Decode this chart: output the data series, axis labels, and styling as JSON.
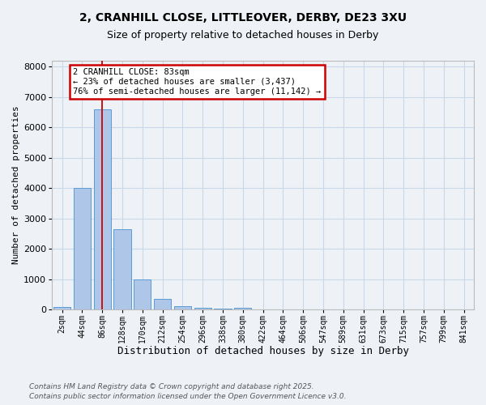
{
  "title_line1": "2, CRANHILL CLOSE, LITTLEOVER, DERBY, DE23 3XU",
  "title_line2": "Size of property relative to detached houses in Derby",
  "xlabel": "Distribution of detached houses by size in Derby",
  "ylabel": "Number of detached properties",
  "categories": [
    "2sqm",
    "44sqm",
    "86sqm",
    "128sqm",
    "170sqm",
    "212sqm",
    "254sqm",
    "296sqm",
    "338sqm",
    "380sqm",
    "422sqm",
    "464sqm",
    "506sqm",
    "547sqm",
    "589sqm",
    "631sqm",
    "673sqm",
    "715sqm",
    "757sqm",
    "799sqm",
    "841sqm"
  ],
  "values": [
    70,
    4000,
    6600,
    2650,
    990,
    340,
    120,
    65,
    40,
    55,
    0,
    0,
    0,
    0,
    0,
    0,
    0,
    0,
    0,
    0,
    0
  ],
  "bar_color": "#aec6e8",
  "bar_edge_color": "#5b9bd5",
  "grid_color": "#c8d8e8",
  "background_color": "#eef2f7",
  "vline_color": "#cc0000",
  "vline_x": 2,
  "annotation_text": "2 CRANHILL CLOSE: 83sqm\n← 23% of detached houses are smaller (3,437)\n76% of semi-detached houses are larger (11,142) →",
  "annotation_box_color": "#ffffff",
  "annotation_box_edge": "#cc0000",
  "ylim": [
    0,
    8200
  ],
  "yticks": [
    0,
    1000,
    2000,
    3000,
    4000,
    5000,
    6000,
    7000,
    8000
  ],
  "footnote1": "Contains HM Land Registry data © Crown copyright and database right 2025.",
  "footnote2": "Contains public sector information licensed under the Open Government Licence v3.0."
}
